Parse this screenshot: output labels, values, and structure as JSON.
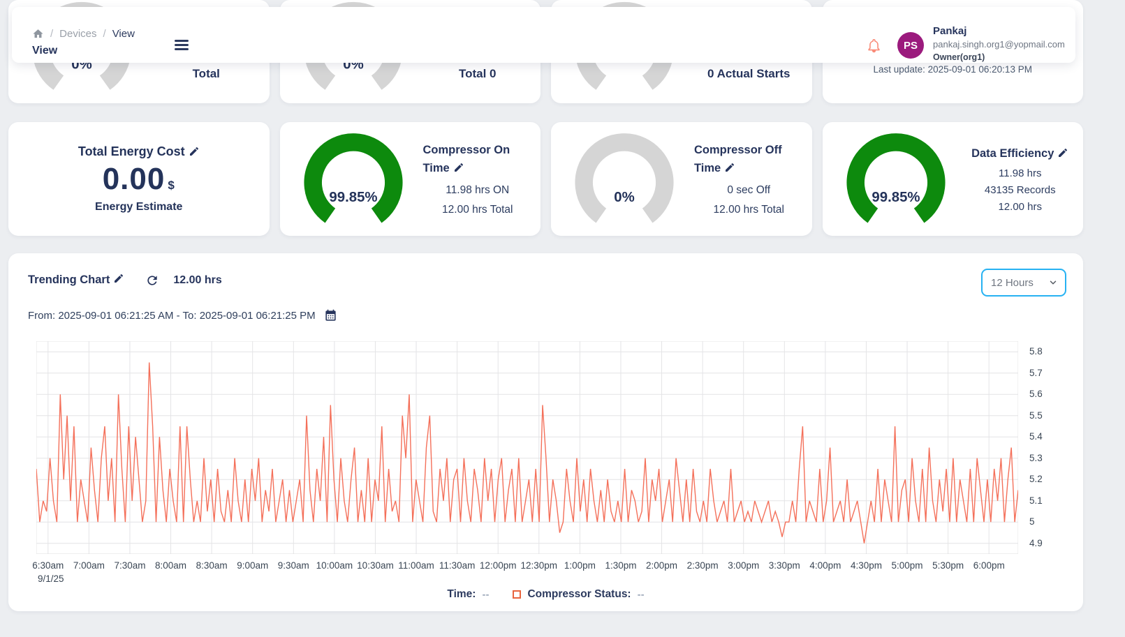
{
  "colors": {
    "accent_select_border": "#27b2f2",
    "gauge_green": "#0d8a0d",
    "gauge_gray": "#d5d5d5",
    "line_series": "#f4705a",
    "legend_square": "#e8643f",
    "bell": "#f98b78",
    "avatar_bg": "#9b1a7d",
    "heading_navy": "#26345c"
  },
  "header": {
    "breadcrumb": {
      "separator": "/",
      "items": [
        "Devices",
        "View"
      ]
    },
    "page_title": "View",
    "user": {
      "initials": "PS",
      "name": "Pankaj",
      "email": "pankaj.singh.org1@yopmail.com",
      "role": "Owner(org1)"
    }
  },
  "top_cards": [
    {
      "gauge_label": "0%",
      "gauge_color": "#d5d5d5",
      "text": "Total"
    },
    {
      "gauge_label": "0%",
      "gauge_color": "#d5d5d5",
      "text": "Total 0"
    },
    {
      "gauge_label": "",
      "gauge_color": "#d5d5d5",
      "text": "0 Actual Starts"
    },
    {
      "text": "Last update: 2025-09-01 06:20:13 PM"
    }
  ],
  "stat_cards": [
    {
      "title": "Total Energy Cost",
      "value": "0.00",
      "unit": "$",
      "subtitle": "Energy Estimate"
    },
    {
      "title": "Compressor On Time",
      "gauge_label": "99.85%",
      "gauge_color": "#0d8a0d",
      "lines": [
        "11.98 hrs ON",
        "12.00 hrs Total"
      ]
    },
    {
      "title": "Compressor Off Time",
      "gauge_label": "0%",
      "gauge_color": "#d5d5d5",
      "lines": [
        "0 sec Off",
        "12.00 hrs Total"
      ]
    },
    {
      "title": "Data Efficiency",
      "gauge_label": "99.85%",
      "gauge_color": "#0d8a0d",
      "lines": [
        "11.98 hrs",
        "43135 Records",
        "12.00 hrs"
      ]
    }
  ],
  "trending": {
    "title": "Trending Chart",
    "duration": "12.00 hrs",
    "date_range": "From: 2025-09-01 06:21:25 AM - To: 2025-09-01 06:21:25 PM",
    "interval_value": "12 Hours",
    "legend": {
      "time_label": "Time:",
      "time_value": "--",
      "status_label": "Compressor Status:",
      "status_value": "--",
      "status_color": "#e8643f"
    }
  },
  "chart_data": {
    "type": "line",
    "title": "Trending Chart",
    "x_axis": {
      "ticks": [
        "6:30am",
        "7:00am",
        "7:30am",
        "8:00am",
        "8:30am",
        "9:00am",
        "9:30am",
        "10:00am",
        "10:30am",
        "11:00am",
        "11:30am",
        "12:00pm",
        "12:30pm",
        "1:00pm",
        "1:30pm",
        "2:00pm",
        "2:30pm",
        "3:00pm",
        "3:30pm",
        "4:00pm",
        "4:30pm",
        "5:00pm",
        "5:30pm",
        "6:00pm"
      ],
      "date_label": "9/1/25",
      "start_offset_min": 8.6,
      "tick_interval_min": 30,
      "total_min": 720
    },
    "y_axis": {
      "ticks": [
        5.8,
        5.7,
        5.6,
        5.5,
        5.4,
        5.3,
        5.2,
        5.1,
        5,
        4.9
      ],
      "range": [
        4.85,
        5.85
      ],
      "position": "right"
    },
    "grid": true,
    "legend_position": "bottom",
    "series": [
      {
        "name": "Compressor Status",
        "color": "#f4705a",
        "values": [
          5.25,
          5.0,
          5.1,
          5.05,
          5.3,
          5.1,
          5.0,
          5.6,
          5.2,
          5.5,
          5.1,
          5.45,
          5.0,
          5.2,
          5.1,
          5.0,
          5.35,
          5.15,
          5.0,
          5.3,
          5.45,
          5.1,
          5.3,
          5.0,
          5.6,
          5.25,
          5.0,
          5.45,
          5.1,
          5.4,
          5.2,
          5.0,
          5.1,
          5.75,
          5.45,
          5.0,
          5.4,
          5.15,
          5.0,
          5.25,
          5.1,
          5.0,
          5.45,
          5.0,
          5.45,
          5.2,
          5.0,
          5.1,
          5.0,
          5.3,
          5.05,
          5.2,
          5.0,
          5.25,
          5.05,
          5.0,
          5.15,
          5.0,
          5.3,
          5.1,
          5.0,
          5.2,
          5.0,
          5.25,
          5.1,
          5.3,
          5.0,
          5.15,
          5.05,
          5.25,
          5.0,
          5.1,
          5.2,
          5.0,
          5.15,
          5.0,
          5.1,
          5.2,
          5.0,
          5.5,
          5.15,
          5.0,
          5.25,
          5.1,
          5.4,
          5.0,
          5.55,
          5.2,
          5.0,
          5.3,
          5.1,
          5.0,
          5.2,
          5.35,
          5.0,
          5.15,
          5.0,
          5.3,
          5.0,
          5.2,
          5.1,
          5.45,
          5.0,
          5.25,
          5.05,
          5.1,
          5.0,
          5.5,
          5.3,
          5.6,
          5.0,
          5.2,
          5.1,
          5.0,
          5.35,
          5.5,
          5.05,
          5.0,
          5.25,
          5.1,
          5.3,
          5.0,
          5.2,
          5.25,
          5.0,
          5.3,
          5.1,
          5.0,
          5.25,
          5.15,
          5.0,
          5.3,
          5.1,
          5.25,
          5.0,
          5.2,
          5.3,
          5.0,
          5.15,
          5.25,
          5.0,
          5.3,
          5.0,
          5.1,
          5.2,
          5.0,
          5.25,
          5.0,
          5.55,
          5.3,
          5.0,
          5.2,
          5.1,
          4.95,
          5.0,
          5.25,
          5.1,
          5.0,
          5.3,
          5.05,
          5.2,
          5.0,
          5.25,
          5.1,
          5.0,
          5.15,
          5.0,
          5.2,
          5.05,
          5.0,
          5.1,
          5.0,
          5.25,
          5.0,
          5.15,
          5.1,
          5.0,
          5.05,
          5.3,
          5.0,
          5.2,
          5.1,
          5.25,
          5.0,
          5.1,
          5.2,
          5.0,
          5.3,
          5.15,
          5.0,
          5.2,
          5.0,
          5.25,
          5.05,
          5.0,
          5.1,
          5.0,
          5.25,
          5.1,
          5.0,
          5.05,
          5.1,
          5.0,
          5.25,
          5.0,
          5.05,
          5.1,
          5.0,
          5.05,
          5.0,
          5.1,
          5.05,
          5.0,
          5.05,
          5.1,
          5.0,
          5.05,
          5.0,
          4.93,
          5.0,
          5.0,
          5.1,
          5.0,
          5.25,
          5.45,
          5.0,
          5.1,
          5.05,
          5.0,
          5.25,
          5.0,
          5.1,
          5.35,
          5.0,
          5.05,
          5.1,
          5.0,
          5.2,
          5.0,
          5.05,
          5.1,
          5.0,
          4.9,
          5.0,
          5.1,
          5.0,
          5.25,
          5.0,
          5.2,
          5.1,
          5.0,
          5.45,
          5.0,
          5.15,
          5.2,
          5.0,
          5.3,
          5.1,
          5.0,
          5.25,
          5.0,
          5.35,
          5.1,
          5.0,
          5.2,
          5.05,
          5.25,
          5.0,
          5.3,
          5.0,
          5.2,
          5.1,
          5.0,
          5.25,
          5.0,
          5.3,
          5.15,
          5.0,
          5.2,
          5.0,
          5.25,
          5.1,
          5.3,
          5.0,
          5.2,
          5.35,
          5.0,
          5.15
        ]
      }
    ]
  }
}
